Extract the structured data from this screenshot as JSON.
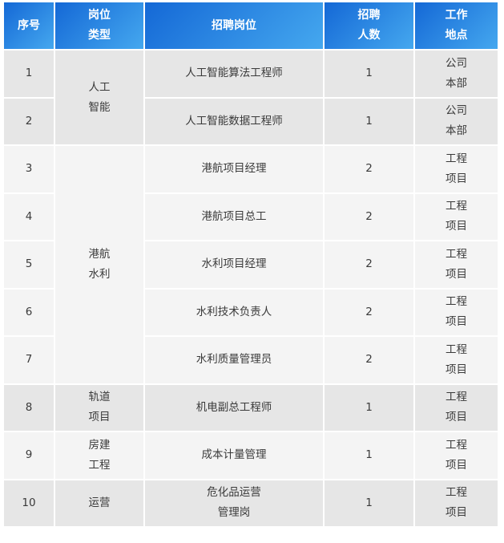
{
  "colors": {
    "header_start": "#1468d6",
    "header_end": "#45a8ef",
    "row_dark": "#e6e6e6",
    "row_light": "#f4f4f4"
  },
  "headers": [
    "序号",
    "岗位\n类型",
    "招聘岗位",
    "招聘\n人数",
    "工作\n地点"
  ],
  "groups": [
    "人工\n智能",
    "港航\n水利",
    "轨道\n项目",
    "房建\n工程",
    "运营"
  ],
  "rows": [
    {
      "no": "1",
      "position": "人工智能算法工程师",
      "count": "1",
      "location": "公司\n本部"
    },
    {
      "no": "2",
      "position": "人工智能数据工程师",
      "count": "1",
      "location": "公司\n本部"
    },
    {
      "no": "3",
      "position": "港航项目经理",
      "count": "2",
      "location": "工程\n项目"
    },
    {
      "no": "4",
      "position": "港航项目总工",
      "count": "2",
      "location": "工程\n项目"
    },
    {
      "no": "5",
      "position": "水利项目经理",
      "count": "2",
      "location": "工程\n项目"
    },
    {
      "no": "6",
      "position": "水利技术负责人",
      "count": "2",
      "location": "工程\n项目"
    },
    {
      "no": "7",
      "position": "水利质量管理员",
      "count": "2",
      "location": "工程\n项目"
    },
    {
      "no": "8",
      "position": "机电副总工程师",
      "count": "1",
      "location": "工程\n项目"
    },
    {
      "no": "9",
      "position": "成本计量管理",
      "count": "1",
      "location": "工程\n项目"
    },
    {
      "no": "10",
      "position": "危化品运营\n管理岗",
      "count": "1",
      "location": "工程\n项目"
    }
  ]
}
